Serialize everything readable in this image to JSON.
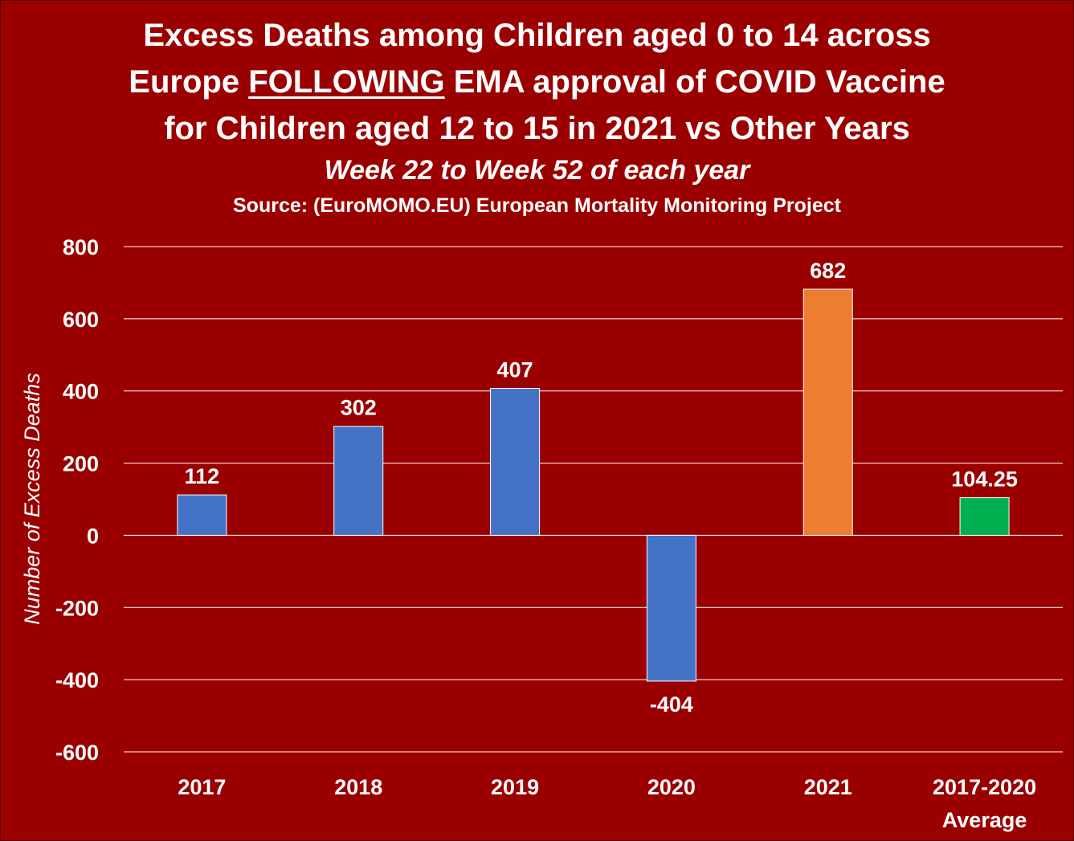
{
  "title": {
    "line1": "Excess Deaths among Children aged 0 to 14 across",
    "line2_before": "Europe ",
    "line2_underlined": "FOLLOWING",
    "line2_after": " EMA approval of COVID Vaccine",
    "line3": "for Children aged 12 to 15 in 2021 vs Other Years"
  },
  "subtitle": "Week 22 to Week 52 of each year",
  "source": "Source: (EuroMOMO.EU) European Mortality Monitoring Project",
  "chart_data": {
    "type": "bar",
    "ylabel": "Number of Excess Deaths",
    "xlabel": "",
    "ylim": [
      -600,
      800
    ],
    "yticks": [
      800,
      600,
      400,
      200,
      0,
      -200,
      -400,
      -600
    ],
    "grid": true,
    "legend": "none",
    "categories": [
      [
        "2017"
      ],
      [
        "2018"
      ],
      [
        "2019"
      ],
      [
        "2020"
      ],
      [
        "2021"
      ],
      [
        "2017-2020",
        "Average"
      ]
    ],
    "values": [
      112,
      302,
      407,
      -404,
      682,
      104.25
    ],
    "data_labels": [
      "112",
      "302",
      "407",
      "-404",
      "682",
      "104.25"
    ],
    "colors": [
      "#4472c4",
      "#4472c4",
      "#4472c4",
      "#4472c4",
      "#ed7d31",
      "#00b050"
    ]
  },
  "colors": {
    "background": "#9b0000",
    "gridline": "#ffffff",
    "text": "#ffffff"
  }
}
